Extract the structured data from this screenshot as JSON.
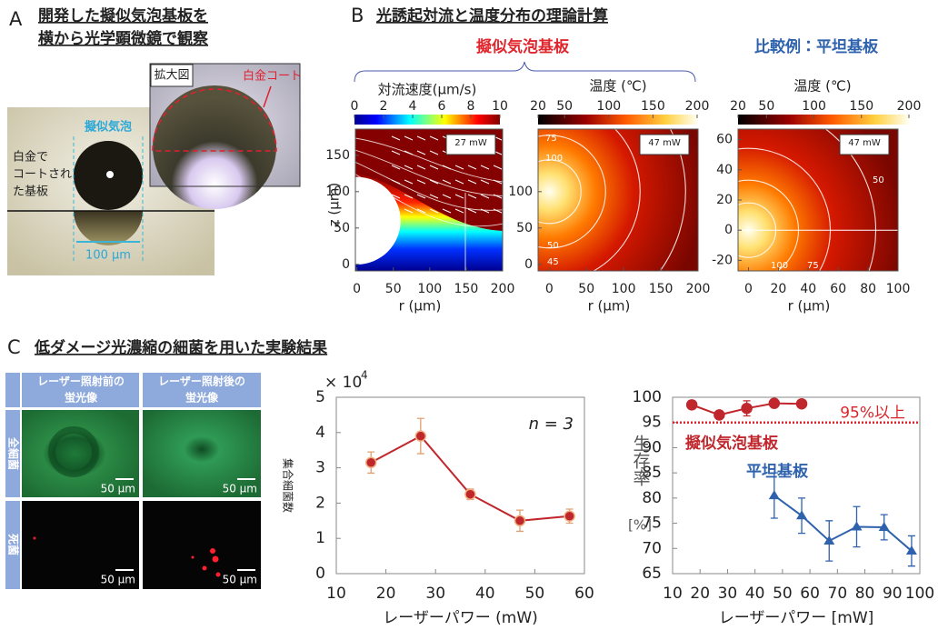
{
  "panel_a": {
    "label": "A",
    "title": [
      "開発した擬似気泡基板を",
      "横から光学顕微鏡で観察"
    ],
    "bubble_label": "擬似気泡",
    "substrate_label": [
      "白金で",
      "コートされ",
      "た基板"
    ],
    "scale_bar": "100 µm",
    "inset_label": "拡大図",
    "coating_label": "白金コート"
  },
  "panel_b": {
    "label": "B",
    "title": "光誘起対流と温度分布の理論計算",
    "group_label": "擬似気泡基板",
    "comparison_label": "比較例：平坦基板",
    "plots": [
      {
        "colorbar_label": "対流速度(µm/s)",
        "colorbar_lim": [
          0,
          10
        ],
        "colorbar_ticks": [
          0,
          2,
          4,
          6,
          8,
          10
        ],
        "power": "27 mW",
        "xlabel": "r (µm)",
        "ylabel": "z (µm)",
        "xlim": [
          -2,
          200
        ],
        "xticks": [
          0,
          50,
          100,
          150,
          200
        ],
        "ylim": [
          -9,
          186
        ],
        "yticks": [
          0,
          50,
          100,
          150
        ]
      },
      {
        "colorbar_label": "温度 (℃)",
        "colorbar_lim": [
          20,
          200
        ],
        "colorbar_ticks": [
          20,
          50,
          100,
          150,
          200
        ],
        "power": "47 mW",
        "xlabel": "r (µm)",
        "xlim": [
          -15,
          200
        ],
        "xticks": [
          0,
          50,
          100,
          150,
          200
        ],
        "ylim": [
          -9,
          186
        ],
        "yticks": [
          0,
          50,
          100
        ],
        "contour_labels": [
          "75",
          "100",
          "50",
          "45"
        ]
      },
      {
        "colorbar_label": "温度 (℃)",
        "colorbar_lim": [
          20,
          200
        ],
        "colorbar_ticks": [
          20,
          50,
          100,
          150,
          200
        ],
        "power": "47 mW",
        "xlabel": "r (µm)",
        "xlim": [
          -7,
          100
        ],
        "xticks": [
          0,
          20,
          40,
          60,
          80,
          100
        ],
        "ylim": [
          -27,
          67
        ],
        "yticks": [
          -20,
          0,
          20,
          40,
          60
        ],
        "contour_labels": [
          "50",
          "100",
          "75"
        ]
      }
    ]
  },
  "panel_c": {
    "label": "C",
    "title": "低ダメージ光濃縮の細菌を用いた実験結果",
    "columns": [
      [
        "レーザー照射前の",
        "蛍光像"
      ],
      [
        "レーザー照射後の",
        "蛍光像"
      ]
    ],
    "rows": [
      "全細菌",
      "死菌"
    ],
    "scale_bars": [
      [
        "50 µm",
        "50 µm"
      ],
      [
        "50 µm",
        "50 µm"
      ]
    ]
  },
  "chart_data": [
    {
      "type": "line",
      "y_scale_label": "× 10",
      "y_scale_exponent": 4,
      "annotation": "n = 3",
      "ylabel": "集合細菌数",
      "xlabel": "レーザーパワー (mW)",
      "xlim": [
        10,
        60
      ],
      "xticks": [
        10,
        20,
        30,
        40,
        50,
        60
      ],
      "ylim": [
        0,
        5
      ],
      "yticks": [
        0,
        1,
        2,
        3,
        4,
        5
      ],
      "series": [
        {
          "color": "#c0272d",
          "x": [
            17,
            27,
            37,
            47,
            57
          ],
          "values": [
            3.15,
            3.9,
            2.25,
            1.5,
            1.63
          ],
          "errors": [
            0.3,
            0.5,
            0.15,
            0.3,
            0.2
          ]
        }
      ]
    },
    {
      "type": "line",
      "ylabel": "生存率",
      "yunit": "[%]",
      "xlabel": "レーザーパワー [mW]",
      "xlim": [
        10,
        100
      ],
      "xticks": [
        10,
        20,
        30,
        40,
        50,
        60,
        70,
        80,
        90,
        100
      ],
      "ylim": [
        65,
        100
      ],
      "yticks": [
        65,
        70,
        75,
        80,
        85,
        90,
        95,
        100
      ],
      "threshold": {
        "value": 95,
        "label": "95%以上",
        "color": "#d9262c"
      },
      "series": [
        {
          "name": "擬似気泡基板",
          "color": "#c0272d",
          "x": [
            17,
            27,
            37,
            47,
            57
          ],
          "values": [
            98.5,
            96.5,
            97.8,
            98.8,
            98.7
          ],
          "errors": [
            0.8,
            0.5,
            1.5,
            0.5,
            0.5
          ]
        },
        {
          "name": "平坦基板",
          "color": "#2e62ad",
          "x": [
            47,
            57,
            67,
            77,
            87,
            97
          ],
          "values": [
            80.5,
            76.5,
            71.5,
            74.3,
            74.2,
            69.5
          ],
          "errors": [
            4.5,
            3.5,
            4,
            4,
            2.5,
            3
          ]
        }
      ]
    }
  ]
}
